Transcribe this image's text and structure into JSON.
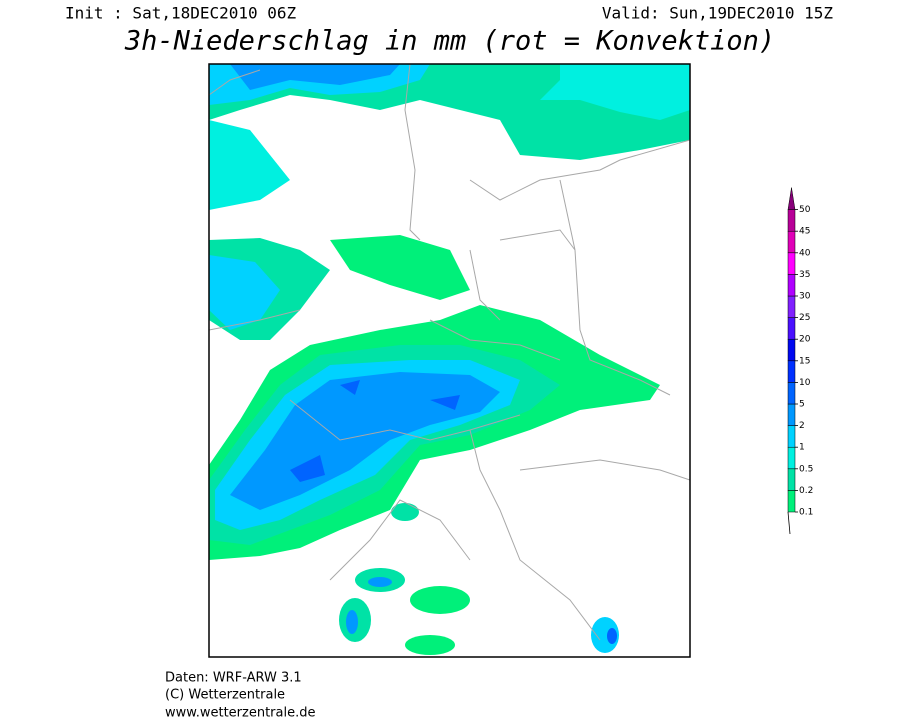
{
  "header": {
    "init": "Init : Sat,18DEC2010 06Z",
    "valid": "Valid: Sun,19DEC2010 15Z",
    "title": "3h-Niederschlag in mm (rot = Konvektion)"
  },
  "colorbar": {
    "ticks": [
      0.1,
      0.2,
      0.5,
      1,
      2,
      5,
      10,
      15,
      20,
      25,
      30,
      35,
      40,
      45,
      50
    ],
    "colors": [
      "#00f07a",
      "#00e2a6",
      "#00f0e0",
      "#00d2ff",
      "#0098ff",
      "#0064ff",
      "#0030ff",
      "#0008f0",
      "#4a10ff",
      "#8020ff",
      "#b000ff",
      "#ff00ff",
      "#e000b8",
      "#b80098",
      "#88007a"
    ]
  },
  "footer": {
    "lines": [
      "Daten: WRF-ARW 3.1",
      "(C) Wetterzentrale",
      "www.wetterzentrale.de"
    ]
  }
}
